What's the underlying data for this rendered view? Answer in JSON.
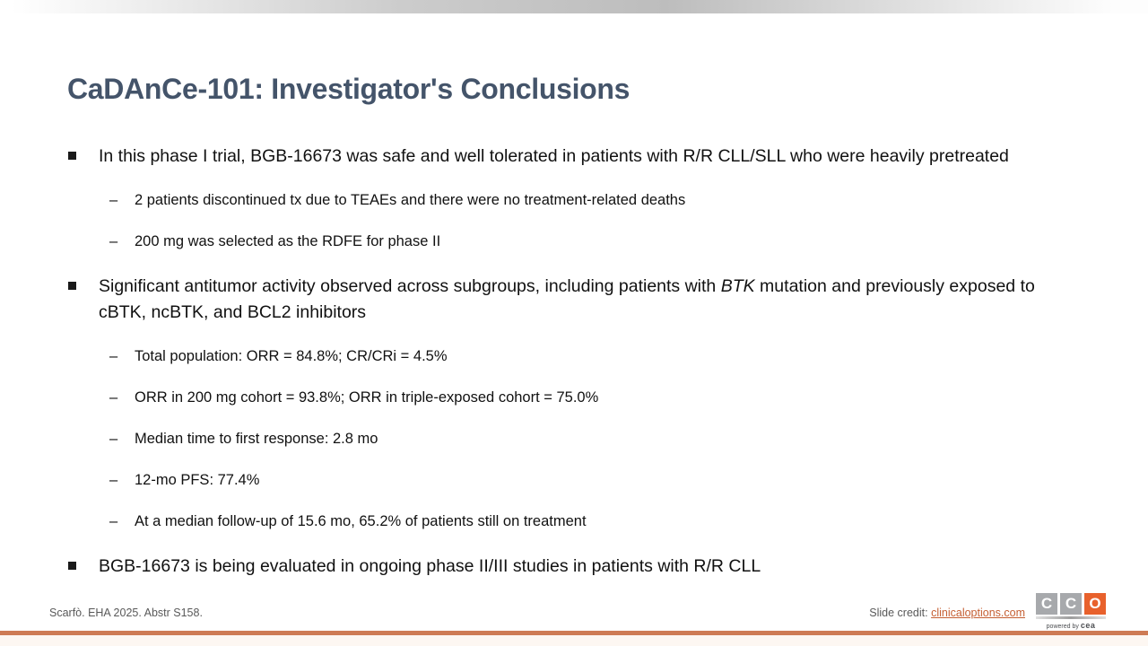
{
  "slide": {
    "title": "CaDAnCe-101: Investigator's Conclusions",
    "bullets": [
      {
        "level": 1,
        "segments": [
          {
            "text": "In this phase I trial, BGB-16673 was safe and well tolerated in patients with R/R CLL/SLL who were heavily pretreated"
          }
        ]
      },
      {
        "level": 2,
        "segments": [
          {
            "text": "2 patients discontinued tx due to TEAEs and there were no treatment-related deaths"
          }
        ]
      },
      {
        "level": 2,
        "segments": [
          {
            "text": "200 mg was selected as the RDFE for phase II"
          }
        ]
      },
      {
        "level": 1,
        "segments": [
          {
            "text": "Significant antitumor activity observed across subgroups, including patients with "
          },
          {
            "text": "BTK",
            "italic": true
          },
          {
            "text": " mutation and previously exposed to cBTK, ncBTK, and BCL2 inhibitors"
          }
        ]
      },
      {
        "level": 2,
        "segments": [
          {
            "text": "Total population: ORR = 84.8%; CR/CRi = 4.5%"
          }
        ]
      },
      {
        "level": 2,
        "segments": [
          {
            "text": "ORR in 200 mg cohort = 93.8%; ORR in triple-exposed cohort = 75.0%"
          }
        ]
      },
      {
        "level": 2,
        "segments": [
          {
            "text": "Median time to first response: 2.8 mo"
          }
        ]
      },
      {
        "level": 2,
        "segments": [
          {
            "text": "12-mo PFS: 77.4%"
          }
        ]
      },
      {
        "level": 2,
        "segments": [
          {
            "text": "At a median follow-up of 15.6 mo, 65.2% of patients still on treatment"
          }
        ]
      },
      {
        "level": 1,
        "segments": [
          {
            "text": "BGB-16673 is being evaluated in ongoing phase II/III studies in patients with R/R CLL"
          }
        ]
      }
    ]
  },
  "footer": {
    "reference": "Scarfò. EHA 2025. Abstr S158.",
    "credit_label": "Slide credit:",
    "credit_link": "clinicaloptions.com"
  },
  "logo": {
    "tiles": [
      {
        "letter": "C",
        "color": "#A7A9AC"
      },
      {
        "letter": "C",
        "color": "#A7A9AC"
      },
      {
        "letter": "O",
        "color": "#E8612C"
      }
    ],
    "tagline_prefix": "powered by",
    "tagline_brand": "cea"
  },
  "colors": {
    "title": "#44546A",
    "top_bar_gray": "#BDBDBD",
    "link_orange": "#C55F33",
    "bottom_rule_orange": "#CE7B55",
    "logo_tile_gray": "#A7A9AC",
    "logo_tile_orange": "#E8612C"
  }
}
